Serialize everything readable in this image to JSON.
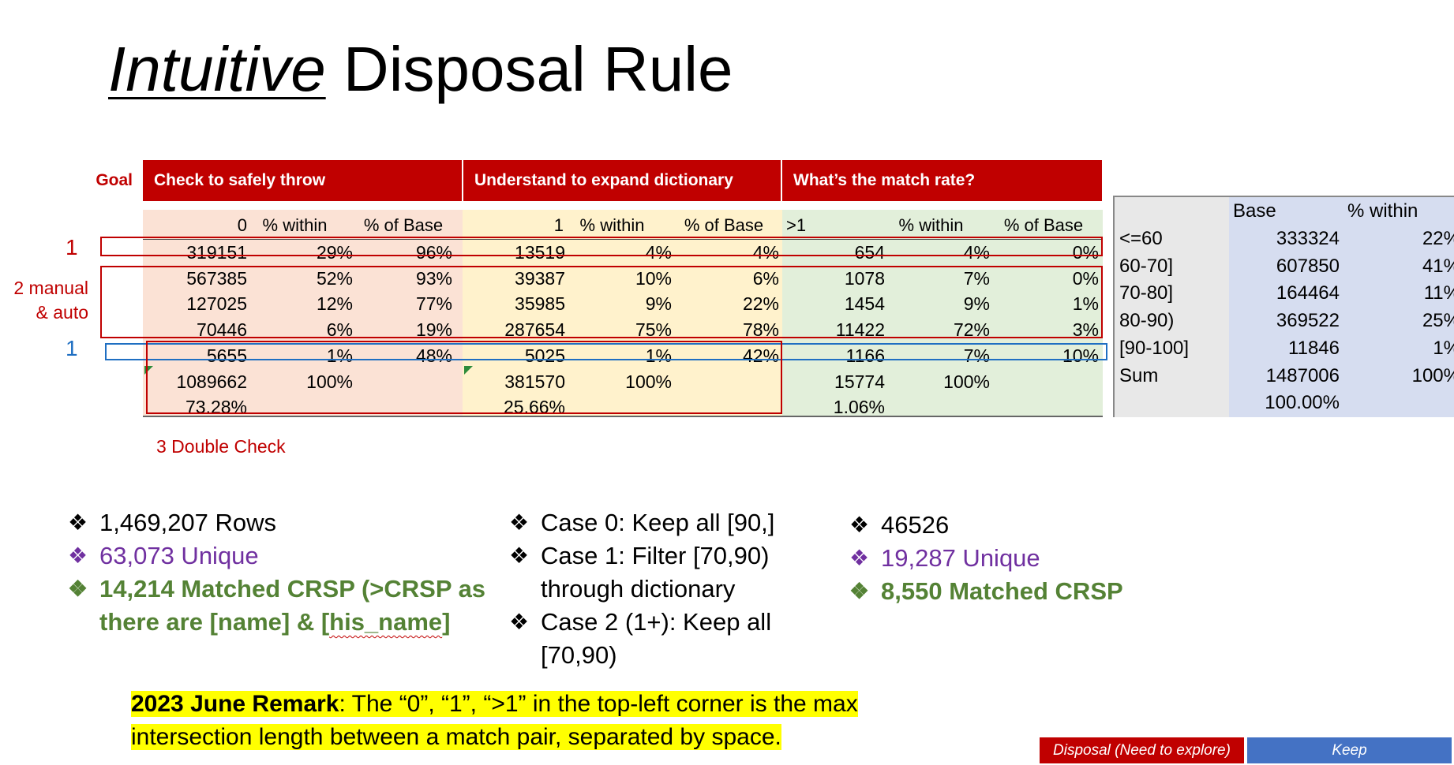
{
  "title": {
    "italic": "Intuitive",
    "rest": " Disposal Rule"
  },
  "header": {
    "goal": "Goal",
    "col1": "Check to safely throw",
    "col2": "Understand to expand dictionary",
    "col3": "What’s the match rate?"
  },
  "table": {
    "headers": [
      "0",
      "% within",
      "% of Base",
      "1",
      "% within",
      "% of Base",
      ">1",
      "% within",
      "% of Base"
    ],
    "rows": [
      [
        "319151",
        "29%",
        "96%",
        "13519",
        "4%",
        "4%",
        "654",
        "4%",
        "0%"
      ],
      [
        "567385",
        "52%",
        "93%",
        "39387",
        "10%",
        "6%",
        "1078",
        "7%",
        "0%"
      ],
      [
        "127025",
        "12%",
        "77%",
        "35985",
        "9%",
        "22%",
        "1454",
        "9%",
        "1%"
      ],
      [
        "70446",
        "6%",
        "19%",
        "287654",
        "75%",
        "78%",
        "11422",
        "72%",
        "3%"
      ],
      [
        "5655",
        "1%",
        "48%",
        "5025",
        "1%",
        "42%",
        "1166",
        "7%",
        "10%"
      ],
      [
        "1089662",
        "100%",
        "",
        "381570",
        "100%",
        "",
        "15774",
        "100%",
        ""
      ],
      [
        "73.28%",
        "",
        "",
        "25.66%",
        "",
        "",
        "1.06%",
        "",
        ""
      ]
    ],
    "colors": {
      "band1": "#fbe2d5",
      "band2": "#fff2cc",
      "band3": "#e2efda"
    }
  },
  "right_table": {
    "headers": [
      "",
      "Base",
      "% within"
    ],
    "rows": [
      [
        "<=60",
        "333324",
        "22%"
      ],
      [
        "60-70]",
        "607850",
        "41%"
      ],
      [
        "70-80]",
        "164464",
        "11%"
      ],
      [
        "80-90)",
        "369522",
        "25%"
      ],
      [
        "[90-100]",
        "11846",
        "1%"
      ],
      [
        "Sum",
        "1487006",
        "100%"
      ],
      [
        "",
        "100.00%",
        ""
      ]
    ]
  },
  "annotations": {
    "label_1_top": "1",
    "label_2_line1": "2 manual",
    "label_2_line2": "& auto",
    "label_1_blue": "1",
    "label_3": "3 Double Check"
  },
  "bullets_left": {
    "b1": "1,469,207 Rows",
    "b2": "63,073 Unique",
    "b3_line1": "14,214 Matched CRSP (>CRSP as",
    "b3_line2_a": "there are [name] & [",
    "b3_line2_b": "his_name",
    "b3_line2_c": "]"
  },
  "bullets_mid": {
    "b1": "Case 0: Keep all [90,]",
    "b2_line1": "Case 1: Filter [70,90)",
    "b2_line2": "through dictionary",
    "b3_line1": "Case 2 (1+): Keep all",
    "b3_line2": "[70,90)"
  },
  "bullets_right": {
    "b1": "46526",
    "b2": "19,287 Unique",
    "b3": "8,550 Matched CRSP"
  },
  "bullet_glyph": "❖",
  "remark": {
    "bold": "2023 June Remark",
    "line1": ": The “0”, “1”, “>1” in the top-left corner is the max",
    "line2": "intersection length between a match pair, separated by space."
  },
  "legend": {
    "disposal": "Disposal (Need to explore)",
    "keep": "Keep",
    "disposal_color": "#c00000",
    "keep_color": "#4472c4"
  }
}
